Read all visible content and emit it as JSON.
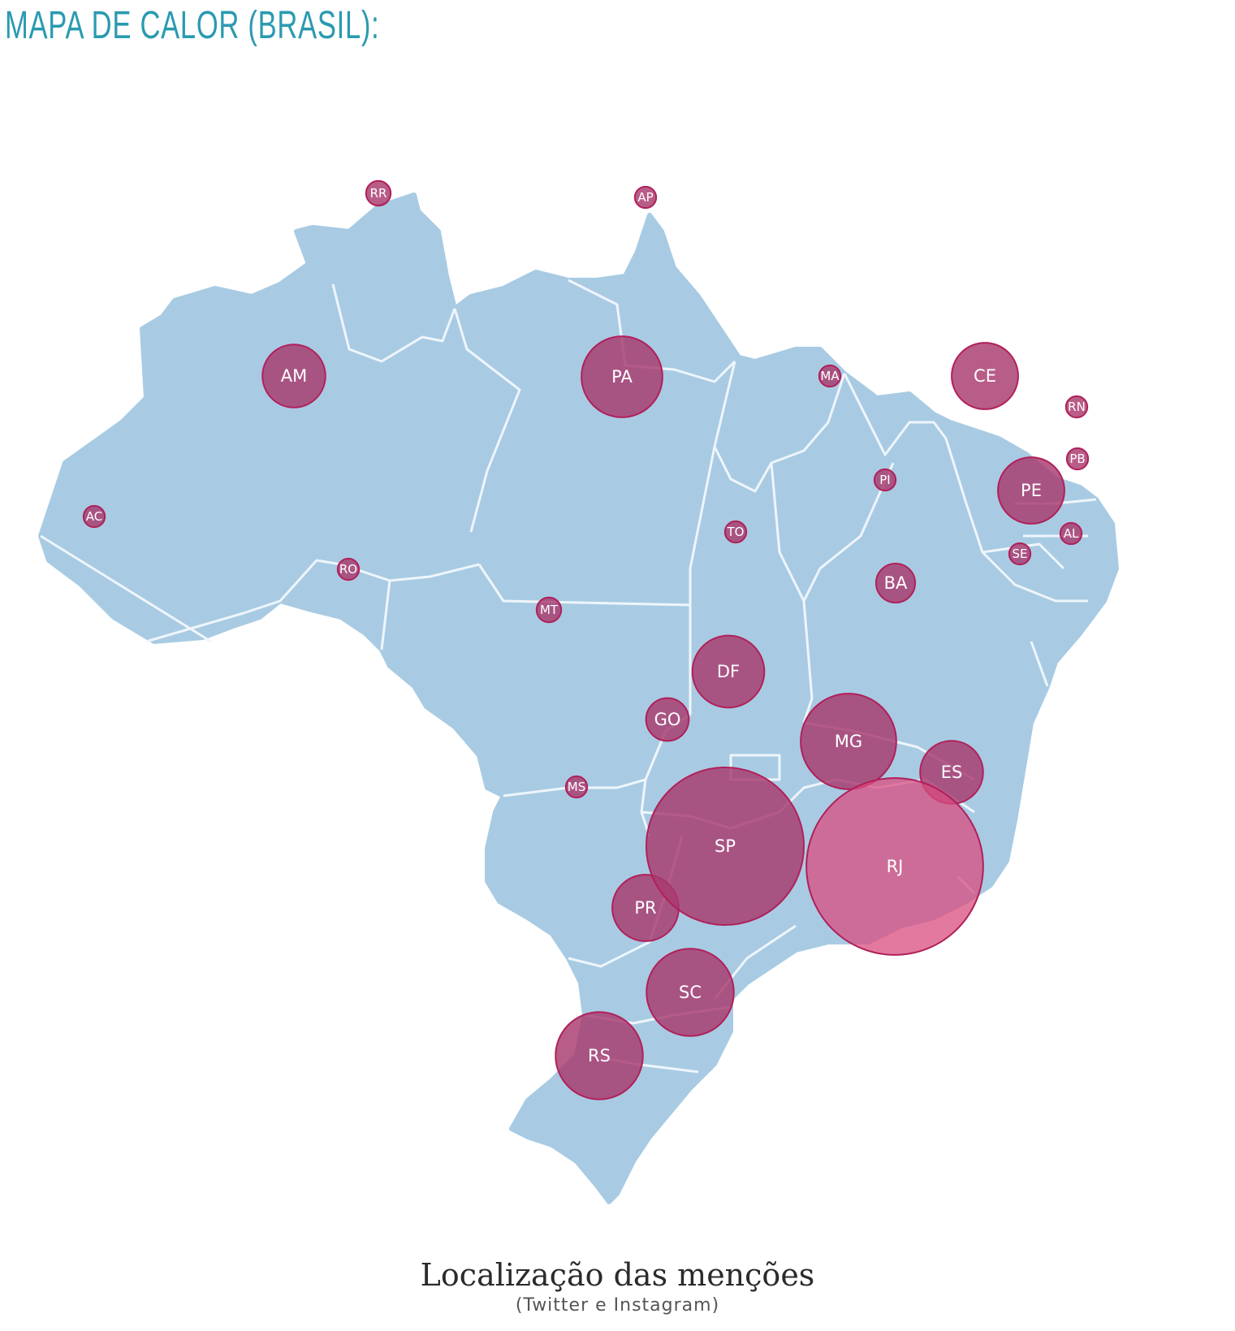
{
  "heading": "MAPA DE CALOR (BRASIL):",
  "colors": {
    "heading": "#2a9ab0",
    "land": "#a8cbe3",
    "borders": "#eef5fb",
    "bubble_fill": "#a8396e",
    "bubble_fill_highlight": "#d94c7f",
    "bubble_stroke": "#b0205a"
  },
  "caption": {
    "title": "Localização das menções",
    "subtitle": "(Twitter e Instagram)"
  },
  "map": {
    "country": "Brasil",
    "states": [
      {
        "code": "RR",
        "relative_mentions": 0.04
      },
      {
        "code": "AP",
        "relative_mentions": 0.03
      },
      {
        "code": "AM",
        "relative_mentions": 0.26
      },
      {
        "code": "PA",
        "relative_mentions": 0.43
      },
      {
        "code": "MA",
        "relative_mentions": 0.03
      },
      {
        "code": "CE",
        "relative_mentions": 0.29
      },
      {
        "code": "RN",
        "relative_mentions": 0.03
      },
      {
        "code": "PB",
        "relative_mentions": 0.03
      },
      {
        "code": "PI",
        "relative_mentions": 0.03
      },
      {
        "code": "PE",
        "relative_mentions": 0.29
      },
      {
        "code": "AC",
        "relative_mentions": 0.03
      },
      {
        "code": "AL",
        "relative_mentions": 0.03
      },
      {
        "code": "TO",
        "relative_mentions": 0.03
      },
      {
        "code": "SE",
        "relative_mentions": 0.03
      },
      {
        "code": "RO",
        "relative_mentions": 0.03
      },
      {
        "code": "BA",
        "relative_mentions": 0.1
      },
      {
        "code": "MT",
        "relative_mentions": 0.04
      },
      {
        "code": "DF",
        "relative_mentions": 0.34
      },
      {
        "code": "GO",
        "relative_mentions": 0.12
      },
      {
        "code": "MG",
        "relative_mentions": 0.6
      },
      {
        "code": "ES",
        "relative_mentions": 0.26
      },
      {
        "code": "MS",
        "relative_mentions": 0.03
      },
      {
        "code": "SP",
        "relative_mentions": 1.63
      },
      {
        "code": "RJ",
        "relative_mentions": 2.05
      },
      {
        "code": "PR",
        "relative_mentions": 0.29
      },
      {
        "code": "SC",
        "relative_mentions": 0.5
      },
      {
        "code": "RS",
        "relative_mentions": 0.5
      }
    ]
  }
}
